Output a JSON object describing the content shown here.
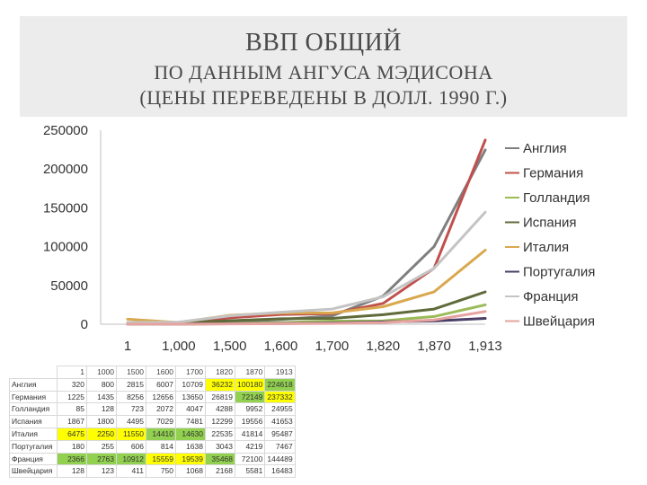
{
  "header": {
    "title": "ВВП ОБЩИЙ",
    "subtitle_line1": "ПО ДАННЫМ АНГУСА МЭДИСОНА",
    "subtitle_line2": "(ЦЕНЫ ПЕРЕВЕДЕНЫ В ДОЛЛ. 1990 Г.)"
  },
  "chart_data": {
    "type": "line",
    "categories": [
      "1",
      "1,000",
      "1,500",
      "1,600",
      "1,700",
      "1,820",
      "1,870",
      "1,913"
    ],
    "ylim": [
      0,
      250000
    ],
    "yticks": [
      "0",
      "50000",
      "100000",
      "150000",
      "200000",
      "250000"
    ],
    "legend_position": "right",
    "series": [
      {
        "name": "Англия",
        "color": "#7f7f7f",
        "values": [
          320,
          800,
          2815,
          6007,
          10709,
          36232,
          100180,
          224618
        ]
      },
      {
        "name": "Германия",
        "color": "#c0504d",
        "values": [
          1225,
          1435,
          8256,
          12656,
          13650,
          26819,
          72149,
          237332
        ]
      },
      {
        "name": "Голландия",
        "color": "#9bbb59",
        "values": [
          85,
          128,
          723,
          2072,
          4047,
          4288,
          9952,
          24955
        ]
      },
      {
        "name": "Испания",
        "color": "#5f6b3a",
        "values": [
          1867,
          1800,
          4495,
          7029,
          7481,
          12299,
          19556,
          41653
        ]
      },
      {
        "name": "Италия",
        "color": "#d9a84e",
        "values": [
          6475,
          2250,
          11550,
          14410,
          14630,
          22535,
          41814,
          95487
        ]
      },
      {
        "name": "Португалия",
        "color": "#4a3f66",
        "values": [
          180,
          255,
          606,
          814,
          1638,
          3043,
          4219,
          7467
        ]
      },
      {
        "name": "Франция",
        "color": "#c4c4c4",
        "values": [
          2366,
          2763,
          10912,
          15559,
          19539,
          35468,
          72100,
          144489
        ]
      },
      {
        "name": "Швейцария",
        "color": "#e6a39f",
        "values": [
          128,
          123,
          411,
          750,
          1068,
          2168,
          5581,
          16483
        ]
      }
    ]
  },
  "table": {
    "headers": [
      "1",
      "1000",
      "1500",
      "1600",
      "1700",
      "1820",
      "1870",
      "1913"
    ],
    "rows": [
      {
        "label": "Англия",
        "cells": [
          "320",
          "800",
          "2815",
          "6007",
          "10709",
          "36232",
          "100180",
          "224618"
        ]
      },
      {
        "label": "Германия",
        "cells": [
          "1225",
          "1435",
          "8256",
          "12656",
          "13650",
          "26819",
          "72149",
          "237332"
        ]
      },
      {
        "label": "Голландия",
        "cells": [
          "85",
          "128",
          "723",
          "2072",
          "4047",
          "4288",
          "9952",
          "24955"
        ]
      },
      {
        "label": "Испания",
        "cells": [
          "1867",
          "1800",
          "4495",
          "7029",
          "7481",
          "12299",
          "19556",
          "41653"
        ]
      },
      {
        "label": "Италия",
        "cells": [
          "6475",
          "2250",
          "11550",
          "14410",
          "14630",
          "22535",
          "41814",
          "95487"
        ]
      },
      {
        "label": "Португалия",
        "cells": [
          "180",
          "255",
          "606",
          "814",
          "1638",
          "3043",
          "4219",
          "7467"
        ]
      },
      {
        "label": "Франция",
        "cells": [
          "2366",
          "2763",
          "10912",
          "15559",
          "19539",
          "35468",
          "72100",
          "144489"
        ]
      },
      {
        "label": "Швейцария",
        "cells": [
          "128",
          "123",
          "411",
          "750",
          "1068",
          "2168",
          "5581",
          "16483"
        ]
      }
    ],
    "highlights": [
      {
        "row": 0,
        "col": 5,
        "color": "#ffff00"
      },
      {
        "row": 0,
        "col": 6,
        "color": "#ffff00"
      },
      {
        "row": 0,
        "col": 7,
        "color": "#92d050"
      },
      {
        "row": 1,
        "col": 6,
        "color": "#92d050"
      },
      {
        "row": 1,
        "col": 7,
        "color": "#ffff00"
      },
      {
        "row": 4,
        "col": 0,
        "color": "#ffff00"
      },
      {
        "row": 4,
        "col": 1,
        "color": "#ffff00"
      },
      {
        "row": 4,
        "col": 2,
        "color": "#ffff00"
      },
      {
        "row": 4,
        "col": 3,
        "color": "#92d050"
      },
      {
        "row": 4,
        "col": 4,
        "color": "#92d050"
      },
      {
        "row": 6,
        "col": 0,
        "color": "#92d050"
      },
      {
        "row": 6,
        "col": 1,
        "color": "#92d050"
      },
      {
        "row": 6,
        "col": 2,
        "color": "#92d050"
      },
      {
        "row": 6,
        "col": 3,
        "color": "#ffff00"
      },
      {
        "row": 6,
        "col": 4,
        "color": "#ffff00"
      },
      {
        "row": 6,
        "col": 5,
        "color": "#92d050"
      }
    ]
  }
}
